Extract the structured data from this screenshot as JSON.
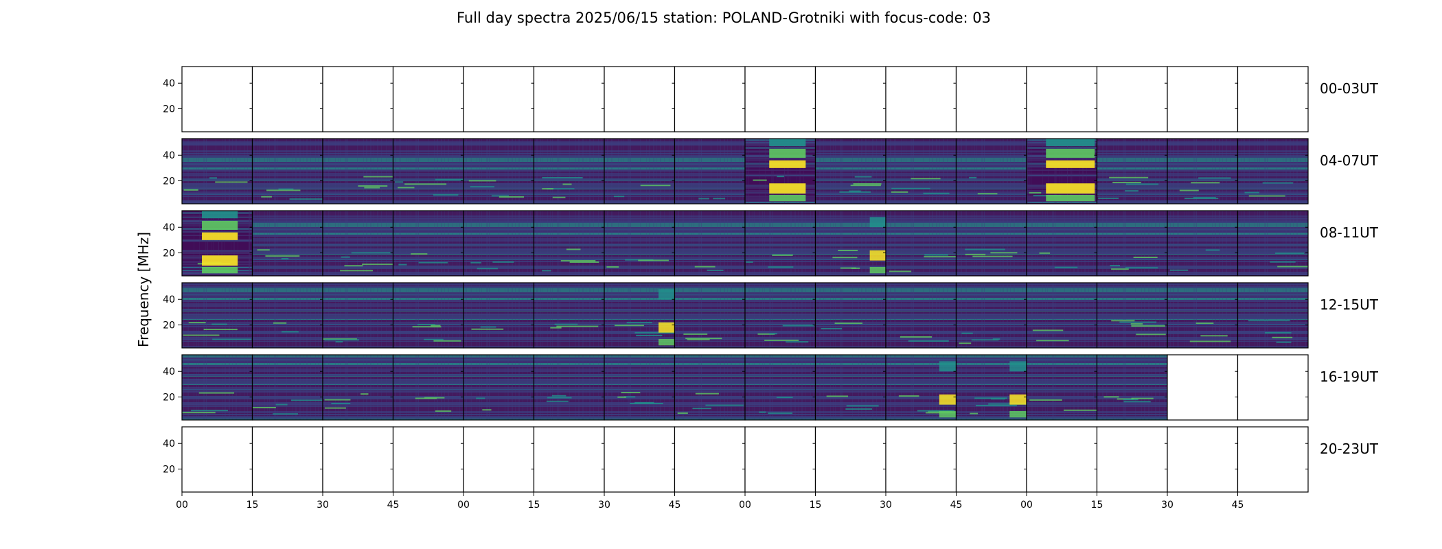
{
  "chart_data": {
    "type": "heatmap",
    "title": "Full day spectra 2025/06/15 station: POLAND-Grotniki with focus-code: 03",
    "ylabel": "Frequency [MHz]",
    "ylim": [
      2,
      53
    ],
    "yticks": [
      "20",
      "40"
    ],
    "ytick_values": [
      20,
      40
    ],
    "xticks": [
      "00",
      "15",
      "30",
      "45",
      "00",
      "15",
      "30",
      "45",
      "00",
      "15",
      "30",
      "45",
      "00",
      "15",
      "30",
      "45"
    ],
    "grid": false,
    "colormap": [
      "#440154",
      "#3b528b",
      "#21918c",
      "#5ec962",
      "#fde725"
    ],
    "rows": [
      {
        "label": "00-03UT",
        "panels": [
          "empty",
          "empty",
          "empty",
          "empty",
          "empty",
          "empty",
          "empty",
          "empty",
          "empty",
          "empty",
          "empty",
          "empty",
          "empty",
          "empty",
          "empty",
          "empty"
        ]
      },
      {
        "label": "04-07UT",
        "panels": [
          "normal",
          "normal",
          "normal",
          "normal",
          "normal",
          "normal",
          "normal",
          "normal",
          "burst",
          "normal",
          "normal",
          "normal",
          "burst",
          "normal",
          "normal",
          "normal"
        ]
      },
      {
        "label": "08-11UT",
        "panels": [
          "burst",
          "normal",
          "normal",
          "normal",
          "normal",
          "normal",
          "normal",
          "normal",
          "normal",
          "mixed",
          "normal",
          "normal",
          "normal",
          "normal",
          "normal",
          "normal"
        ]
      },
      {
        "label": "12-15UT",
        "panels": [
          "normal",
          "normal",
          "normal",
          "normal",
          "normal",
          "normal",
          "mixed",
          "normal",
          "normal",
          "normal",
          "normal",
          "normal",
          "normal",
          "normal",
          "normal",
          "normal"
        ]
      },
      {
        "label": "16-19UT",
        "panels": [
          "normal",
          "normal",
          "normal",
          "normal",
          "normal",
          "normal",
          "normal",
          "normal",
          "normal",
          "normal",
          "mixed",
          "mixed",
          "normal",
          "normal",
          "empty",
          "empty"
        ]
      },
      {
        "label": "20-23UT",
        "panels": [
          "empty",
          "empty",
          "empty",
          "empty",
          "empty",
          "empty",
          "empty",
          "empty",
          "empty",
          "empty",
          "empty",
          "empty",
          "empty",
          "empty",
          "empty",
          "empty"
        ]
      }
    ]
  }
}
